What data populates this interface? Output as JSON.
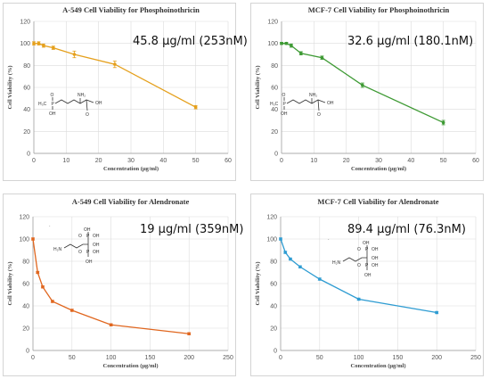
{
  "chart_data": [
    {
      "type": "line",
      "title": "A-549 Cell Viability  for Phosphoinothricin",
      "xlabel": "Concentration (μg/ml)",
      "ylabel": "Cell Viability (%)",
      "annotation": "45.8 μg/ml (253nM)",
      "xlim": [
        0,
        60
      ],
      "ylim": [
        0,
        120
      ],
      "xticks": [
        "0",
        "10",
        "20",
        "30",
        "40",
        "50",
        "60"
      ],
      "yticks": [
        "0",
        "20",
        "40",
        "60",
        "80",
        "100",
        "120"
      ],
      "grid": true,
      "color": "#E5A01C",
      "x": [
        0,
        1.5,
        3,
        6,
        12.5,
        25,
        50
      ],
      "y": [
        100,
        100,
        98,
        96,
        90,
        81,
        42
      ],
      "err": [
        1.5,
        1.5,
        1.5,
        1.5,
        3,
        3,
        1.5
      ],
      "structure": {
        "h3c": "H₃C",
        "p": "P",
        "o": "O",
        "oh": "OH",
        "nh2": "NH₂",
        "oh2": "OH",
        "o2": "O"
      }
    },
    {
      "type": "line",
      "title": "MCF-7 Cell Viability  for Phosphoinothricin",
      "xlabel": "Concentration (μg/ml)",
      "ylabel": "Cell Viability (%)",
      "annotation": "32.6 μg/ml (180.1nM)",
      "xlim": [
        0,
        60
      ],
      "ylim": [
        0,
        120
      ],
      "xticks": [
        "0",
        "10",
        "20",
        "30",
        "40",
        "50",
        "60"
      ],
      "yticks": [
        "0",
        "20",
        "40",
        "60",
        "80",
        "100",
        "120"
      ],
      "grid": true,
      "color": "#3E9A34",
      "x": [
        0,
        1.5,
        3,
        6,
        12.5,
        25,
        50
      ],
      "y": [
        100,
        100,
        98,
        91,
        87,
        62,
        28
      ],
      "err": [
        1,
        1,
        1.5,
        1.5,
        1.5,
        2,
        2
      ],
      "structure": {
        "h3c": "H₃C",
        "p": "P",
        "o": "O",
        "oh": "OH",
        "nh2": "NH₂",
        "oh2": "OH",
        "o2": "O"
      }
    },
    {
      "type": "line",
      "title": "A-549 Cell Viability  for Alendronate",
      "xlabel": "Concentration (μg/ml)",
      "ylabel": "Cell Viability (%)",
      "annotation": "19 μg/ml (359nM)",
      "xlim": [
        0,
        250
      ],
      "ylim": [
        0,
        120
      ],
      "xticks": [
        "0",
        "50",
        "100",
        "150",
        "200",
        "250"
      ],
      "yticks": [
        "0",
        "20",
        "40",
        "60",
        "80",
        "100",
        "120"
      ],
      "grid": true,
      "color": "#E0661E",
      "x": [
        0,
        6,
        12.5,
        25,
        50,
        100,
        200
      ],
      "y": [
        100,
        70,
        57,
        44,
        36,
        23,
        15
      ],
      "err": [
        1,
        1,
        1,
        1,
        1,
        1,
        1
      ],
      "structure": {
        "h2n": "H₂N",
        "p": "P",
        "oh": "OH",
        "o": "O",
        "dot": "·"
      }
    },
    {
      "type": "line",
      "title": "MCF-7 Cell Viability  for Alendronate",
      "xlabel": "Concentration (μg/ml)",
      "ylabel": "Cell Viability (%)",
      "annotation": "89.4 μg/ml (76.3nM)",
      "xlim": [
        0,
        250
      ],
      "ylim": [
        0,
        120
      ],
      "xticks": [
        "0",
        "50",
        "100",
        "150",
        "200",
        "250"
      ],
      "yticks": [
        "0",
        "20",
        "40",
        "60",
        "80",
        "100",
        "120"
      ],
      "grid": true,
      "color": "#2E9CD2",
      "x": [
        0,
        6,
        12.5,
        25,
        50,
        100,
        200
      ],
      "y": [
        100,
        88,
        82,
        75,
        64,
        46,
        34
      ],
      "err": [
        1,
        1,
        1,
        1,
        1,
        1,
        1
      ],
      "structure": {
        "h2n": "H₂N",
        "p": "P",
        "oh": "OH",
        "o": "O",
        "dot": "·"
      }
    }
  ]
}
